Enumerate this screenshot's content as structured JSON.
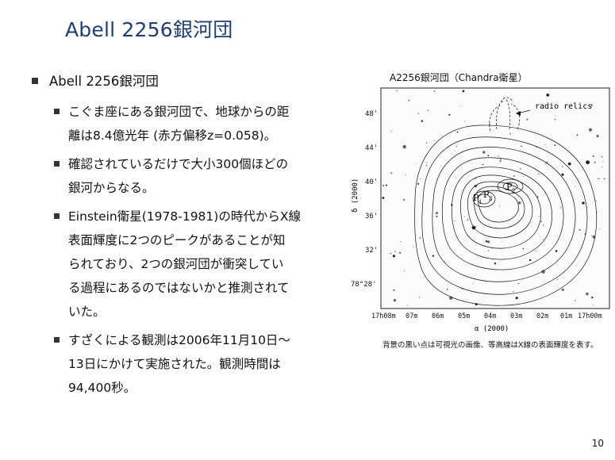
{
  "slide": {
    "title": "Abell 2256銀河団",
    "page_number": "10"
  },
  "bullets": {
    "main": "Abell 2256銀河団",
    "items": [
      {
        "lines": [
          "こぐま座にある銀河団で、地球からの距",
          "離は8.4億光年 (赤方偏移z=0.058)。"
        ]
      },
      {
        "lines": [
          "確認されているだけで大小300個ほどの",
          "銀河からなる。"
        ]
      },
      {
        "lines": [
          "Einstein衛星(1978-1981)の時代からX線",
          "表面輝度に2つのピークがあることが知",
          "られており、2つの銀河団が衝突してい",
          "る過程にあるのではないかと推測されて",
          "いた。"
        ]
      },
      {
        "lines": [
          "すざくによる観測は2006年11月10日〜",
          "13日にかけて実施された。観測時間は",
          "94,400秒。"
        ]
      }
    ]
  },
  "figure": {
    "title": "A2256銀河団（Chandra衛星）",
    "annotation": "radio relics",
    "y_axis_label": "δ (2000)",
    "x_axis_label": "α (2000)",
    "y_ticks": [
      "48'",
      "44'",
      "40'",
      "36'",
      "32'",
      "78°28'"
    ],
    "x_ticks": [
      "17h08m",
      "07m",
      "06m",
      "05m",
      "04m",
      "03m",
      "02m",
      "01m",
      "17h00m"
    ],
    "peak_labels": [
      "P",
      "P",
      "P"
    ],
    "peak_subscripts": [
      "1",
      "3",
      "2"
    ],
    "caption": "背景の黒い点は可視光の画像、等高線はX線の表面輝度を表す。"
  }
}
